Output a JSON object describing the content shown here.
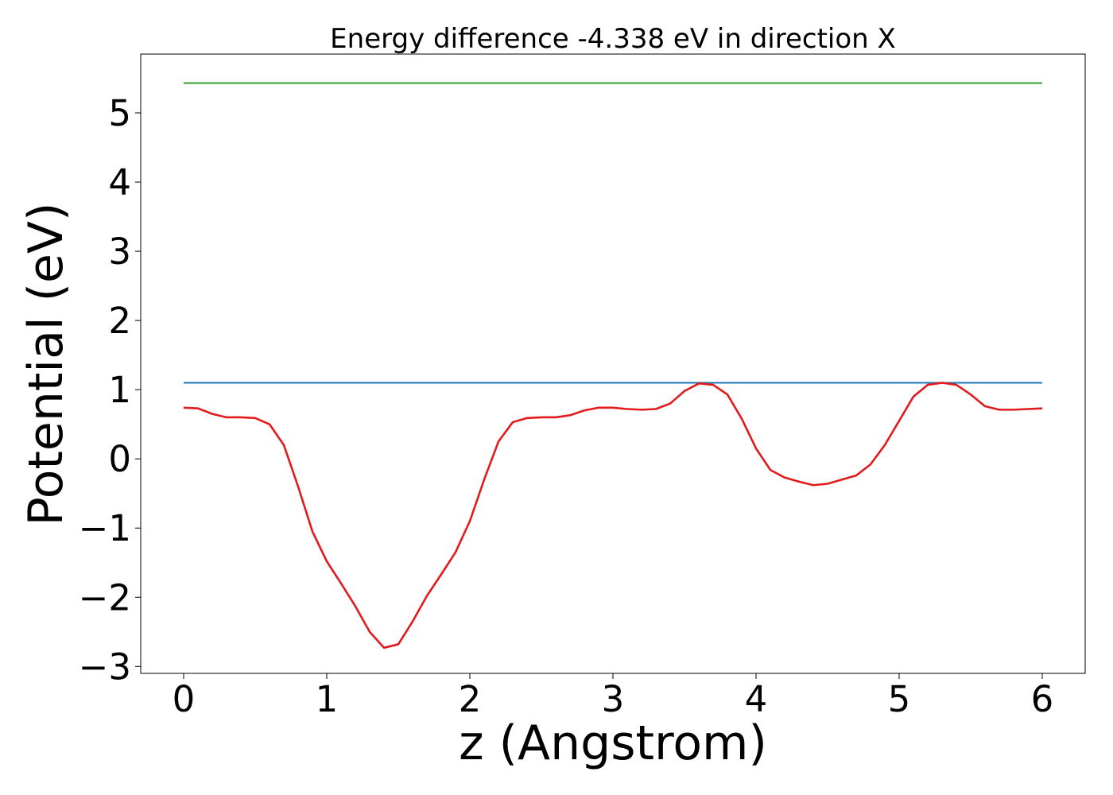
{
  "chart_data": {
    "type": "line",
    "title": "Energy difference -4.338 eV in direction X",
    "xlabel": "z (Angstrom)",
    "ylabel": "Potential (eV)",
    "xlim": [
      -0.3,
      6.3
    ],
    "ylim": [
      -3.1,
      5.85
    ],
    "grid": false,
    "xticks": [
      0,
      1,
      2,
      3,
      4,
      5,
      6
    ],
    "xtick_labels": [
      "0",
      "1",
      "2",
      "3",
      "4",
      "5",
      "6"
    ],
    "yticks": [
      -3,
      -2,
      -1,
      0,
      1,
      2,
      3,
      4,
      5
    ],
    "ytick_labels": [
      "−3",
      "−2",
      "−1",
      "0",
      "1",
      "2",
      "3",
      "4",
      "5"
    ],
    "colors": {
      "potential": "#e31a1c",
      "upper_level": "#33a02c",
      "lower_level": "#1f78b4"
    },
    "series": [
      {
        "key": "upper_level",
        "x": [
          0,
          6
        ],
        "y": [
          5.43,
          5.43
        ]
      },
      {
        "key": "lower_level",
        "x": [
          0,
          6
        ],
        "y": [
          1.1,
          1.1
        ]
      },
      {
        "key": "potential",
        "x": [
          0,
          0.1,
          0.2,
          0.3,
          0.4,
          0.5,
          0.6,
          0.7,
          0.8,
          0.9,
          1.0,
          1.1,
          1.2,
          1.3,
          1.4,
          1.5,
          1.6,
          1.7,
          1.8,
          1.9,
          2.0,
          2.1,
          2.2,
          2.3,
          2.4,
          2.5,
          2.6,
          2.7,
          2.8,
          2.9,
          3.0,
          3.1,
          3.2,
          3.3,
          3.4,
          3.5,
          3.6,
          3.7,
          3.8,
          3.9,
          4.0,
          4.1,
          4.2,
          4.3,
          4.4,
          4.5,
          4.6,
          4.7,
          4.8,
          4.9,
          5.0,
          5.1,
          5.2,
          5.3,
          5.4,
          5.5,
          5.6,
          5.7,
          5.8,
          5.9,
          6.0
        ],
        "y": [
          0.74,
          0.73,
          0.65,
          0.6,
          0.6,
          0.59,
          0.5,
          0.2,
          -0.4,
          -1.05,
          -1.48,
          -1.8,
          -2.13,
          -2.5,
          -2.73,
          -2.68,
          -2.35,
          -1.98,
          -1.67,
          -1.35,
          -0.9,
          -0.3,
          0.25,
          0.53,
          0.59,
          0.6,
          0.6,
          0.63,
          0.7,
          0.74,
          0.74,
          0.72,
          0.71,
          0.72,
          0.8,
          0.98,
          1.09,
          1.07,
          0.93,
          0.58,
          0.15,
          -0.16,
          -0.27,
          -0.33,
          -0.38,
          -0.36,
          -0.3,
          -0.24,
          -0.08,
          0.2,
          0.55,
          0.9,
          1.07,
          1.1,
          1.07,
          0.93,
          0.76,
          0.71,
          0.71,
          0.72,
          0.73
        ]
      }
    ]
  }
}
